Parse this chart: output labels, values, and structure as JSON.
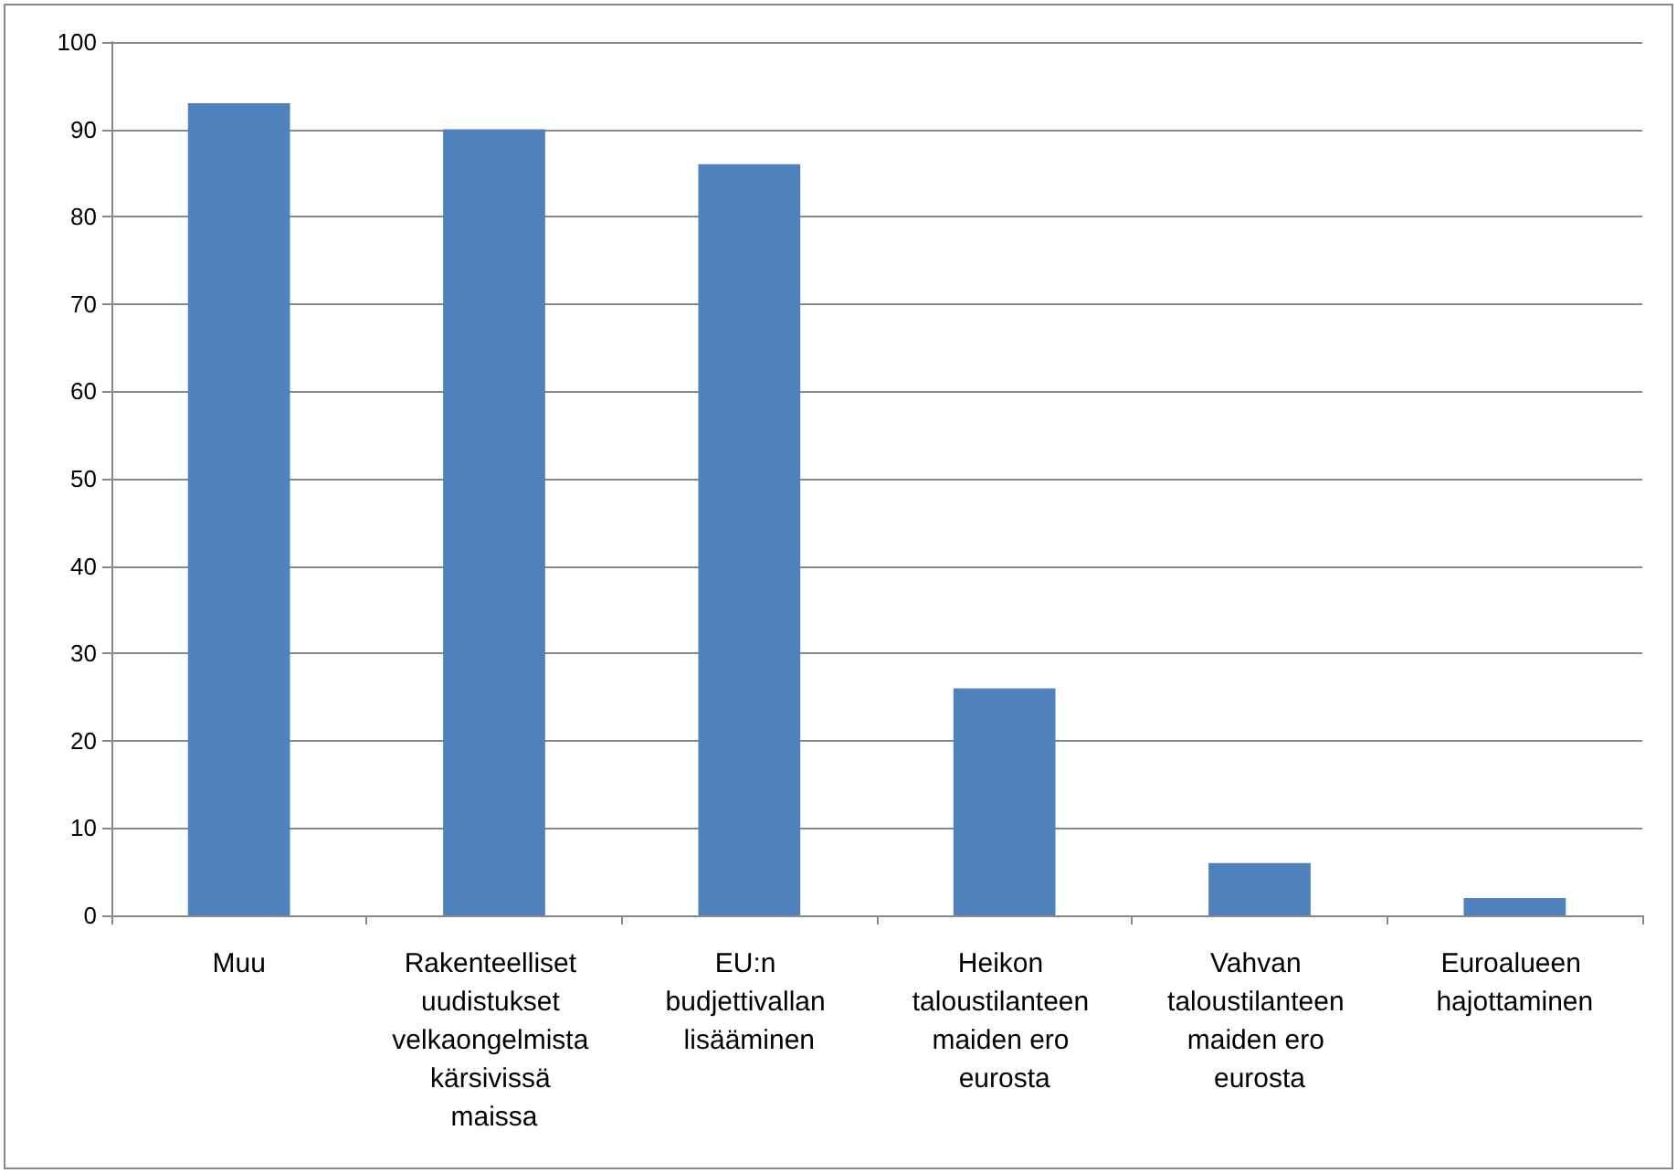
{
  "chart_data": {
    "type": "bar",
    "categories": [
      "Muu",
      "Rakenteelliset uudistukset velkaongelmista kärsivissä maissa",
      "EU:n budjettivallan lisääminen",
      "Heikon taloustilanteen maiden ero eurosta",
      "Vahvan taloustilanteen maiden ero eurosta",
      "Euroalueen hajottaminen"
    ],
    "values": [
      93,
      90,
      86,
      26,
      6,
      2
    ],
    "color": "#4f81bd",
    "ylim": [
      0,
      100
    ],
    "yticks": [
      0,
      10,
      20,
      30,
      40,
      50,
      60,
      70,
      80,
      90,
      100
    ],
    "grid": "y"
  }
}
